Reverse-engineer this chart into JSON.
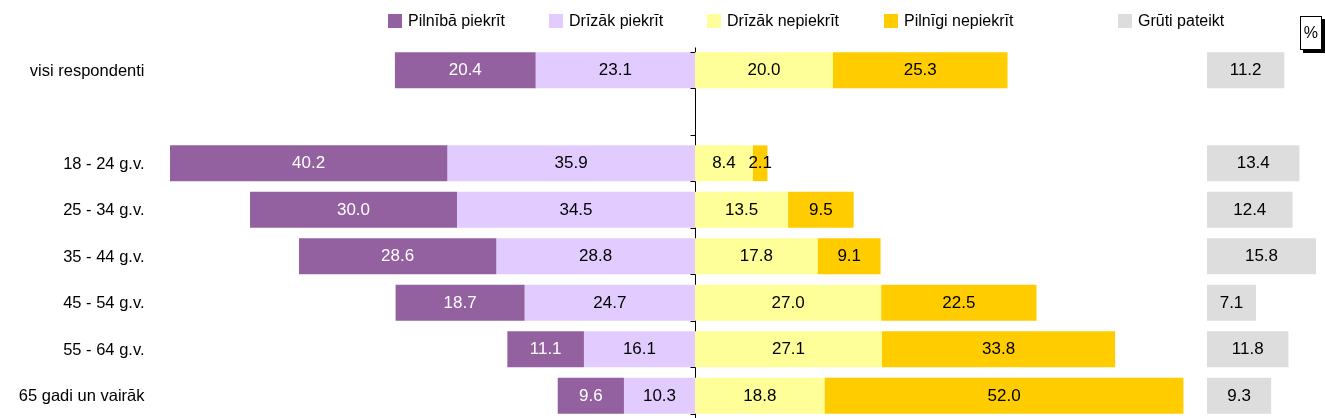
{
  "chart_data": [
    {
      "type": "bar",
      "orientation": "horizontal",
      "stacked": true,
      "categories": [
        "visi respondenti",
        null,
        "18 - 24 g.v.",
        "25 - 34 g.v.",
        "35 - 44 g.v.",
        "45 - 54 g.v.",
        "55 - 64 g.v.",
        "65 gadi un vairāk"
      ],
      "xlim": [
        76.1,
        0
      ],
      "series": [
        {
          "name": "Drīzāk piekrīt",
          "color": "#e2ccff",
          "values": [
            23.1,
            null,
            35.9,
            34.5,
            28.8,
            24.7,
            16.1,
            10.3
          ],
          "value_labels": [
            "23.1",
            null,
            "35.9",
            "34.5",
            "28.8",
            "24.7",
            "16.1",
            "10.3"
          ]
        },
        {
          "name": "Pilnībā piekrīt",
          "color": "#9461a0",
          "values": [
            20.4,
            null,
            40.2,
            30.0,
            28.6,
            18.7,
            11.1,
            9.6
          ],
          "value_labels": [
            "20.4",
            null,
            "40.2",
            "30.0",
            "28.6",
            "18.7",
            "11.1",
            "9.6"
          ]
        }
      ],
      "legend": "top",
      "tick_labels": "y"
    },
    {
      "type": "bar",
      "orientation": "horizontal",
      "stacked": true,
      "categories": [
        null,
        null,
        null,
        null,
        null,
        null,
        null,
        null
      ],
      "series": [
        {
          "name": "Drīzāk nepiekrīt",
          "color": "#ffff99",
          "values": [
            20.0,
            null,
            8.4,
            13.5,
            17.8,
            27.0,
            27.1,
            18.8
          ],
          "value_labels": [
            "20.0",
            null,
            "8.4",
            "13.5",
            "17.8",
            "27.0",
            "27.1",
            "18.8"
          ]
        },
        {
          "name": "Pilnīgi nepiekrīt",
          "color": "#ffcc00",
          "values": [
            25.3,
            null,
            2.1,
            9.5,
            9.1,
            22.5,
            33.8,
            52.0
          ],
          "value_labels": [
            "25.3",
            null,
            "2.1",
            "9.5",
            "9.1",
            "22.5",
            "33.8",
            "52.0"
          ]
        }
      ],
      "legend": "top",
      "tick_labels": false
    },
    {
      "type": "bar",
      "orientation": "horizontal",
      "categories": [
        null,
        null,
        null,
        null,
        null,
        null,
        null,
        null
      ],
      "series": [
        {
          "name": "Grūti pateikt",
          "color": "#dddddd",
          "values": [
            11.2,
            null,
            13.4,
            12.4,
            15.8,
            7.1,
            11.8,
            9.3
          ]
        }
      ],
      "data_labels": true,
      "legend": "top",
      "tick_labels": false,
      "annotations": [
        "%"
      ]
    }
  ]
}
